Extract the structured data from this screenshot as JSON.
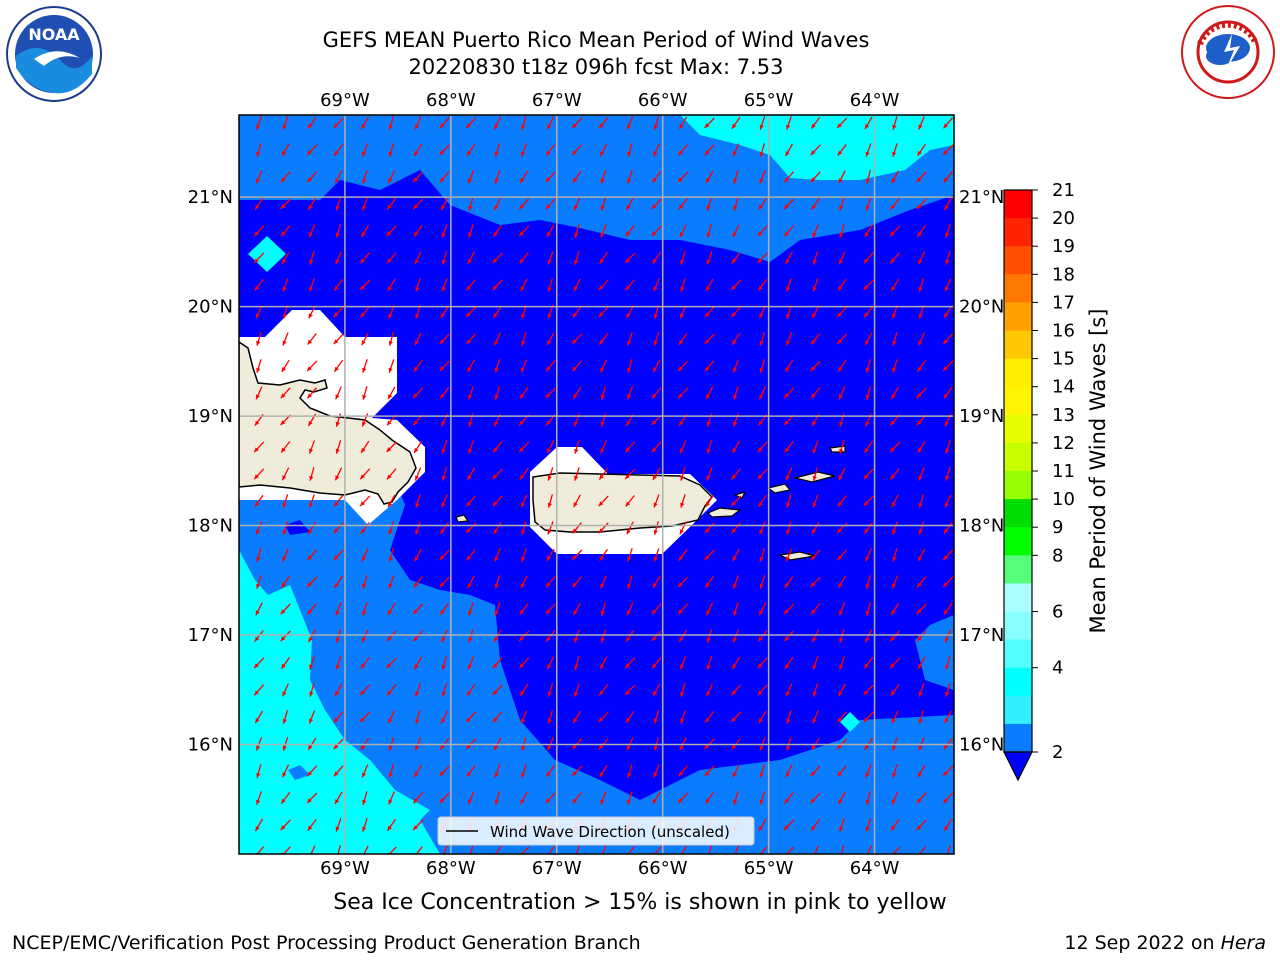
{
  "header": {
    "title_line1": "GEFS MEAN Puerto Rico Mean Period of Wind Waves",
    "title_line2": "20220830 t18z 096h fcst   Max: 7.53"
  },
  "logos": {
    "left": {
      "icon": "noaa-logo",
      "text": "NOAA"
    },
    "right": {
      "icon": "nws-logo",
      "text": "NATIONAL WEATHER SERVICE"
    }
  },
  "map": {
    "lon_labels": [
      "69°W",
      "68°W",
      "67°W",
      "66°W",
      "65°W",
      "64°W"
    ],
    "lat_labels": [
      "21°N",
      "20°N",
      "19°N",
      "18°N",
      "17°N",
      "16°N"
    ],
    "lon_values": [
      -69,
      -68,
      -67,
      -66,
      -65,
      -64
    ],
    "lat_values": [
      21,
      20,
      19,
      18,
      17,
      16
    ],
    "lon_range": [
      -70.0,
      -63.25
    ],
    "lat_range": [
      15.0,
      21.75
    ],
    "wind_direction_deg_from": 30,
    "legend_label": "Wind Wave Direction (unscaled)",
    "colors": {
      "shade_2_4": "#0a7dff",
      "shade_low": "#0000ff",
      "shade_4_6": "#00ffff",
      "land": "#efecdc",
      "arrow": "#ff0000",
      "grid": "#b0b0b0"
    }
  },
  "colorbar": {
    "label": "Mean Period of Wind Waves [s]",
    "ticks": [
      "21",
      "20",
      "19",
      "18",
      "17",
      "16",
      "15",
      "14",
      "13",
      "12",
      "11",
      "10",
      "9",
      "8",
      "6",
      "4",
      "2"
    ],
    "levels_top_to_bottom": [
      "#ff0000",
      "#ff2400",
      "#ff5000",
      "#ff7800",
      "#ffa000",
      "#ffc800",
      "#ffee00",
      "#fff500",
      "#e6ff00",
      "#c8ff00",
      "#96ff00",
      "#00dd00",
      "#00ff00",
      "#55ff77",
      "#aaffff",
      "#88ffff",
      "#55ffff",
      "#00ffff",
      "#33eeff",
      "#0a7dff"
    ],
    "extend_color": "#0000ff"
  },
  "footer": {
    "sea_ice_note": "Sea Ice Concentration > 15% is shown in pink to yellow",
    "credit_left": "NCEP/EMC/Verification Post Processing Product Generation Branch",
    "credit_right_date": "12 Sep 2022 on ",
    "credit_right_host": "Hera"
  }
}
